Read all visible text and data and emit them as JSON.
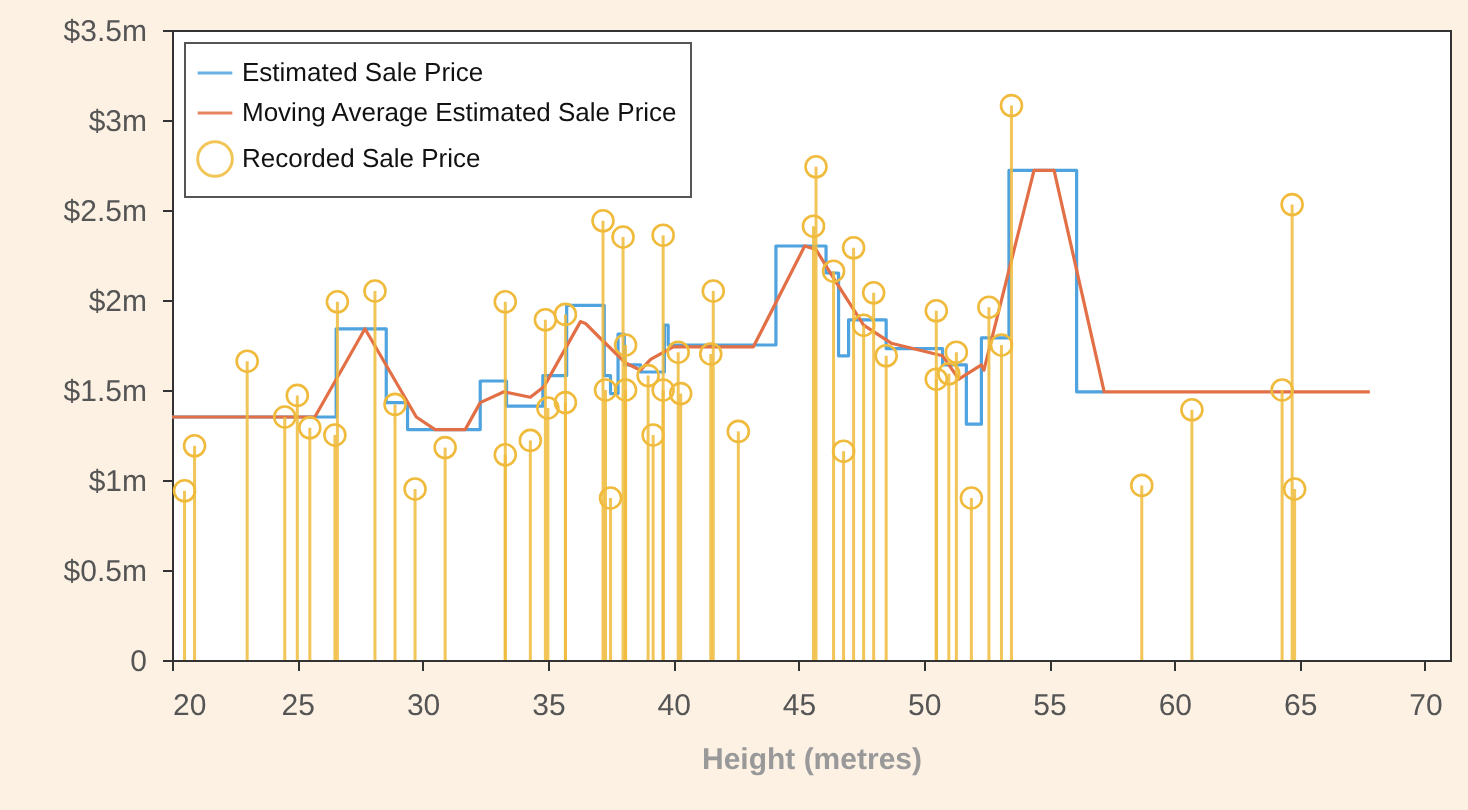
{
  "chart_data": {
    "type": "line",
    "xlabel": "Height (metres)",
    "xlim": [
      20,
      71
    ],
    "xticks": [
      20,
      25,
      30,
      35,
      40,
      45,
      50,
      55,
      60,
      65,
      70
    ],
    "ylim": [
      0,
      3.5
    ],
    "yticks": [
      0,
      {
        "value": 0.5,
        "label": "$0.5m"
      },
      {
        "value": 1,
        "label": "$1m"
      },
      {
        "value": 1.5,
        "label": "$1.5m"
      },
      {
        "value": 2,
        "label": "$2m"
      },
      {
        "value": 2.5,
        "label": "$2.5m"
      },
      {
        "value": 3,
        "label": "$3m"
      },
      {
        "value": 3.5,
        "label": "$3.5m"
      }
    ],
    "legend": "top left",
    "series": [
      {
        "name": "Estimated Sale Price",
        "type": "step",
        "color": "#4fa3df",
        "x": [
          20,
          26.55,
          28.55,
          29.4,
          32.3,
          33.35,
          34.8,
          35.75,
          37.25,
          37.5,
          37.8,
          38.05,
          38.7,
          39.65,
          39.8,
          44.1,
          46.1,
          46.6,
          47.0,
          48.5,
          50.75,
          51.7,
          52.3,
          53.4,
          56.1,
          57.2
        ],
        "values": [
          1.35,
          1.84,
          1.43,
          1.28,
          1.55,
          1.41,
          1.58,
          1.97,
          1.58,
          1.48,
          1.81,
          1.64,
          1.6,
          1.86,
          1.75,
          2.3,
          2.15,
          1.69,
          1.89,
          1.73,
          1.64,
          1.31,
          1.79,
          2.72,
          1.49,
          1.49
        ]
      },
      {
        "name": "Moving Average Estimated Sale Price",
        "type": "line",
        "color": "#e26f45",
        "x": [
          20,
          25.7,
          27.7,
          29.75,
          30.5,
          31.7,
          32.3,
          33.25,
          34.3,
          34.85,
          36.3,
          36.5,
          37.0,
          38.1,
          38.7,
          39.1,
          40.0,
          43.2,
          45.25,
          45.7,
          46.45,
          47.6,
          48.7,
          50.75,
          51.4,
          52.3,
          52.4,
          54.4,
          55.2,
          57.2,
          67.8
        ],
        "values": [
          1.35,
          1.35,
          1.84,
          1.35,
          1.28,
          1.28,
          1.43,
          1.49,
          1.46,
          1.52,
          1.88,
          1.87,
          1.8,
          1.65,
          1.61,
          1.67,
          1.74,
          1.74,
          2.3,
          2.28,
          2.11,
          1.86,
          1.76,
          1.69,
          1.56,
          1.64,
          1.61,
          2.72,
          2.72,
          1.49,
          1.49
        ]
      },
      {
        "name": "Recorded Sale Price",
        "type": "lollipop",
        "color": "#f0bb3c",
        "marker": "circle",
        "x": [
          20.5,
          20.9,
          23.0,
          24.5,
          25.0,
          25.5,
          26.5,
          26.6,
          28.1,
          28.9,
          29.7,
          30.9,
          33.3,
          33.3,
          34.3,
          34.9,
          35.0,
          35.7,
          35.7,
          37.2,
          37.3,
          37.5,
          38.0,
          38.1,
          38.1,
          39.0,
          39.2,
          39.6,
          39.6,
          40.2,
          40.3,
          41.6,
          41.5,
          42.6,
          45.6,
          45.7,
          46.4,
          46.8,
          47.2,
          47.6,
          48.0,
          48.5,
          50.5,
          50.5,
          51.3,
          51.0,
          51.9,
          52.6,
          53.1,
          53.5,
          58.7,
          60.7,
          64.3,
          64.7,
          64.8
        ],
        "values": [
          0.94,
          1.19,
          1.66,
          1.35,
          1.47,
          1.29,
          1.25,
          1.99,
          2.05,
          1.42,
          0.95,
          1.18,
          1.99,
          1.14,
          1.22,
          1.89,
          1.4,
          1.92,
          1.43,
          2.44,
          1.5,
          0.9,
          2.35,
          1.75,
          1.5,
          1.58,
          1.25,
          2.36,
          1.5,
          1.71,
          1.48,
          2.05,
          1.7,
          1.27,
          2.41,
          2.74,
          2.16,
          1.16,
          2.29,
          1.86,
          2.04,
          1.69,
          1.94,
          1.56,
          1.71,
          1.59,
          0.9,
          1.96,
          1.75,
          3.08,
          0.97,
          1.39,
          1.5,
          2.53,
          0.95
        ]
      }
    ]
  }
}
